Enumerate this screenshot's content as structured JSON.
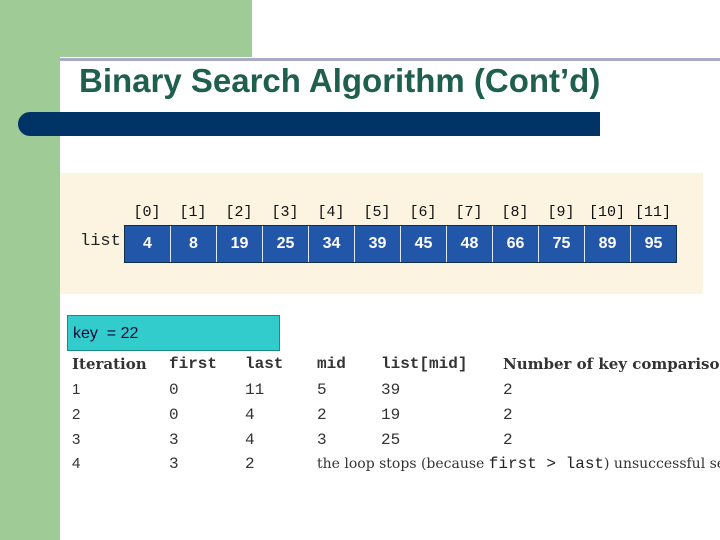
{
  "slide": {
    "title": "Binary Search Algorithm (Cont’d)"
  },
  "array": {
    "label": "list",
    "indices": [
      "[0]",
      "[1]",
      "[2]",
      "[3]",
      "[4]",
      "[5]",
      "[6]",
      "[7]",
      "[8]",
      "[9]",
      "[10]",
      "[11]"
    ],
    "values": [
      "4",
      "8",
      "19",
      "25",
      "34",
      "39",
      "45",
      "48",
      "66",
      "75",
      "89",
      "95"
    ]
  },
  "key_box": {
    "text": "key  = 22"
  },
  "trace_table": {
    "headers": {
      "iteration": "Iteration",
      "first": "first",
      "last": "last",
      "mid": "mid",
      "list_mid": "list[mid]",
      "comparisons": "Number of key comparisons"
    },
    "rows": [
      {
        "iteration": "1",
        "first": "0",
        "last": "11",
        "mid": "5",
        "list_mid": "39",
        "comparisons": "2"
      },
      {
        "iteration": "2",
        "first": "0",
        "last": "4",
        "mid": "2",
        "list_mid": "19",
        "comparisons": "2"
      },
      {
        "iteration": "3",
        "first": "3",
        "last": "4",
        "mid": "3",
        "list_mid": "25",
        "comparisons": "2"
      },
      {
        "iteration": "4",
        "first": "3",
        "last": "2"
      }
    ],
    "stop_note": {
      "prefix": "the loop stops (because ",
      "condition": "first > last",
      "suffix": ") unsuccessful search"
    }
  },
  "colors": {
    "sidebar_green": "#9ecb96",
    "title_green": "#1f5f4e",
    "title_bar_navy": "#003366",
    "cell_blue": "#2256a8",
    "key_box_cyan": "#33cccc",
    "panel_beige": "#fdf3e1"
  }
}
